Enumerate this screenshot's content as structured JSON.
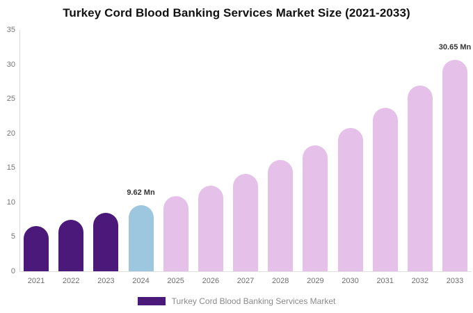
{
  "chart_data": {
    "type": "bar",
    "title": "Turkey Cord Blood Banking Services Market Size (2021-2033)",
    "unit": "Mn",
    "categories": [
      "2021",
      "2022",
      "2023",
      "2024",
      "2025",
      "2026",
      "2027",
      "2028",
      "2029",
      "2030",
      "2031",
      "2032",
      "2033"
    ],
    "values": [
      6.55,
      7.45,
      8.47,
      9.62,
      10.94,
      12.44,
      14.15,
      16.09,
      18.3,
      20.81,
      23.67,
      26.92,
      30.65
    ],
    "bar_colors": [
      "#4B1979",
      "#4B1979",
      "#4B1979",
      "#9CC7DF",
      "#E5C1E9",
      "#E5C1E9",
      "#E5C1E9",
      "#E5C1E9",
      "#E5C1E9",
      "#E5C1E9",
      "#E5C1E9",
      "#E5C1E9",
      "#E5C1E9"
    ],
    "color_roles": {
      "historical": "#4B1979",
      "highlight": "#9CC7DF",
      "forecast": "#E5C1E9"
    },
    "ylim": [
      0,
      35
    ],
    "yticks": [
      0,
      5,
      10,
      15,
      20,
      25,
      30,
      35
    ],
    "grid": false,
    "annotations": [
      {
        "category": "2024",
        "text": "9.62 Mn"
      },
      {
        "category": "2033",
        "text": "30.65 Mn"
      }
    ],
    "legend": {
      "position": "bottom",
      "swatch_color": "#4B1979",
      "label": "Turkey Cord Blood Banking Services Market"
    }
  }
}
